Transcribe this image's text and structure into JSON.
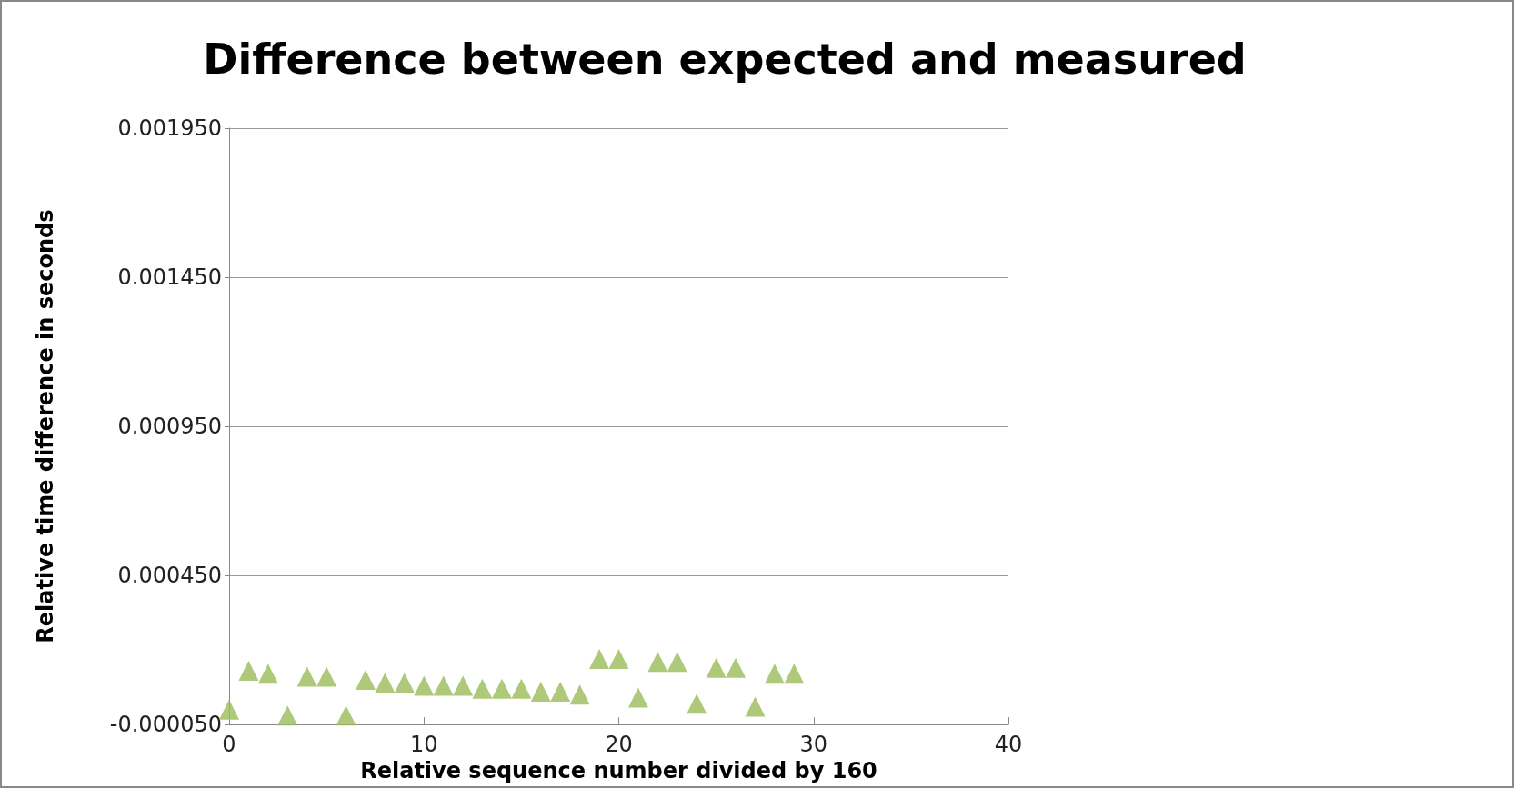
{
  "chart_data": {
    "type": "scatter",
    "title": "Difference between expected and measured",
    "xlabel": "Relative sequence number divided by 160",
    "ylabel": "Relative time difference in seconds",
    "x": [
      0,
      1,
      2,
      3,
      4,
      5,
      6,
      7,
      8,
      9,
      10,
      11,
      12,
      13,
      14,
      15,
      16,
      17,
      18,
      19,
      20,
      21,
      22,
      23,
      24,
      25,
      26,
      27,
      28,
      29
    ],
    "series": [
      {
        "color": "#9bbb59",
        "values": [
          0.0,
          0.00013,
          0.00012,
          -2e-05,
          0.00011,
          0.00011,
          -2e-05,
          0.0001,
          9e-05,
          9e-05,
          8e-05,
          8e-05,
          8e-05,
          7e-05,
          7e-05,
          7e-05,
          6e-05,
          6e-05,
          5e-05,
          0.00017,
          0.00017,
          4e-05,
          0.00016,
          0.00016,
          2e-05,
          0.00014,
          0.00014,
          1e-05,
          0.00012,
          0.00012
        ]
      }
    ],
    "xlim": [
      0,
      40
    ],
    "xticks": [
      0,
      10,
      20,
      30,
      40
    ],
    "ylim": [
      -5e-05,
      0.00195
    ],
    "yticks": [
      {
        "value": -5e-05,
        "label": "-0.000050"
      },
      {
        "value": 0.00045,
        "label": "0.000450"
      },
      {
        "value": 0.00095,
        "label": "0.000950"
      },
      {
        "value": 0.00145,
        "label": "0.001450"
      },
      {
        "value": 0.00195,
        "label": "0.001950"
      }
    ],
    "grid": "y",
    "marker": "triangle"
  }
}
